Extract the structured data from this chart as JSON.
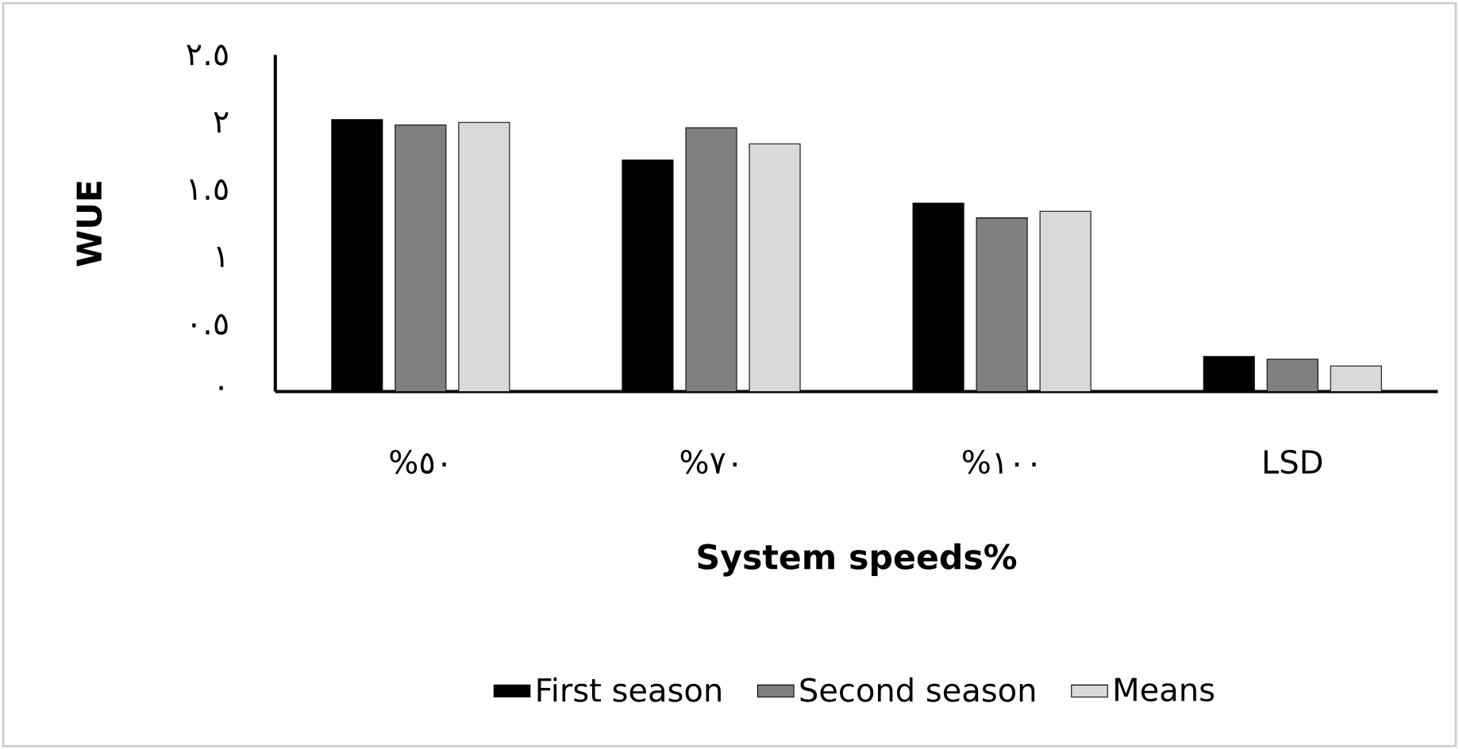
{
  "chart_data": {
    "type": "bar",
    "xlabel": "System speeds%",
    "ylabel": "WUE",
    "categories": [
      "%٥٠",
      "%٧٠",
      "%١٠٠",
      "LSD"
    ],
    "series": [
      {
        "name": "First season",
        "color": "#000000",
        "values": [
          2.02,
          1.72,
          1.4,
          0.26
        ]
      },
      {
        "name": "Second season",
        "color": "#808080",
        "values": [
          1.98,
          1.96,
          1.29,
          0.24
        ]
      },
      {
        "name": "Means",
        "color": "#d9d9d9",
        "values": [
          2.0,
          1.84,
          1.34,
          0.19
        ]
      }
    ],
    "ylim": [
      0,
      2.5
    ],
    "yticks": [
      {
        "value": 0,
        "label": "٠"
      },
      {
        "value": 0.5,
        "label": "٠.٥"
      },
      {
        "value": 1,
        "label": "١"
      },
      {
        "value": 1.5,
        "label": "١.٥"
      },
      {
        "value": 2,
        "label": "٢"
      },
      {
        "value": 2.5,
        "label": "٢.٥"
      }
    ],
    "grid": false,
    "legend": "bottom"
  }
}
